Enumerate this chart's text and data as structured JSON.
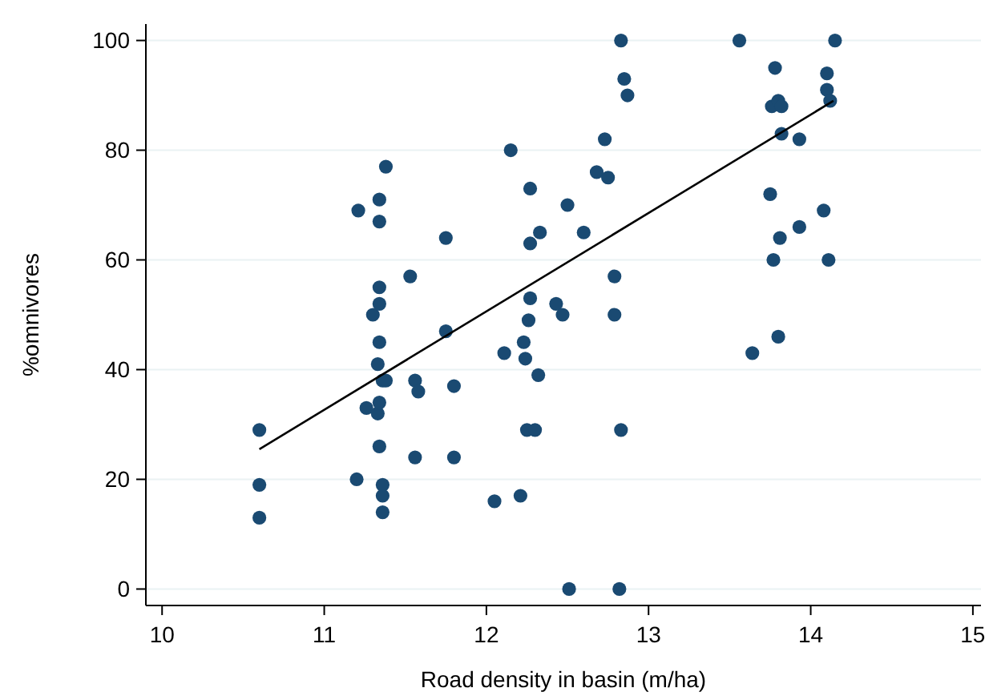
{
  "chart_data": {
    "type": "scatter",
    "xlabel": "Road density in basin (m/ha)",
    "ylabel": "%omnivores",
    "xlim": [
      9.9,
      15.05
    ],
    "ylim": [
      -3,
      103
    ],
    "xticks": [
      10,
      11,
      12,
      13,
      14,
      15
    ],
    "yticks": [
      0,
      20,
      40,
      60,
      80,
      100
    ],
    "grid": "y",
    "series": [
      {
        "color": "#1a4a72",
        "marker": "circle",
        "x": [
          10.6,
          10.6,
          10.6,
          11.2,
          11.21,
          11.26,
          11.3,
          11.33,
          11.33,
          11.34,
          11.34,
          11.34,
          11.34,
          11.34,
          11.34,
          11.34,
          11.36,
          11.38,
          11.38,
          11.36,
          11.36,
          11.36,
          11.53,
          11.56,
          11.56,
          11.58,
          11.75,
          11.75,
          11.8,
          11.8,
          12.05,
          12.11,
          12.15,
          12.21,
          12.23,
          12.24,
          12.25,
          12.3,
          12.27,
          12.27,
          12.26,
          12.27,
          12.33,
          12.32,
          12.43,
          12.47,
          12.5,
          12.51,
          12.6,
          12.68,
          12.73,
          12.75,
          12.79,
          12.79,
          12.82,
          12.83,
          12.83,
          12.85,
          12.87,
          13.56,
          13.64,
          13.75,
          13.77,
          13.78,
          13.76,
          13.8,
          13.82,
          13.81,
          13.8,
          13.82,
          13.93,
          13.93,
          14.08,
          14.1,
          14.1,
          14.11,
          14.12,
          14.15
        ],
        "values": [
          29,
          19,
          13,
          20,
          69,
          33,
          50,
          32,
          41,
          71,
          67,
          55,
          52,
          45,
          34,
          26,
          38,
          38,
          77,
          19,
          17,
          14,
          57,
          38,
          24,
          36,
          64,
          47,
          37,
          24,
          16,
          43,
          80,
          17,
          45,
          42,
          29,
          29,
          73,
          63,
          49,
          53,
          65,
          39,
          52,
          50,
          70,
          0,
          65,
          76,
          82,
          75,
          57,
          50,
          0,
          29,
          100,
          93,
          90,
          100,
          43,
          72,
          60,
          95,
          88,
          89,
          88,
          64,
          46,
          83,
          66,
          82,
          69,
          94,
          91,
          60,
          89,
          100
        ]
      },
      {
        "type": "line",
        "color": "#000000",
        "x": [
          10.6,
          14.14
        ],
        "values": [
          25.5,
          89
        ]
      }
    ]
  }
}
